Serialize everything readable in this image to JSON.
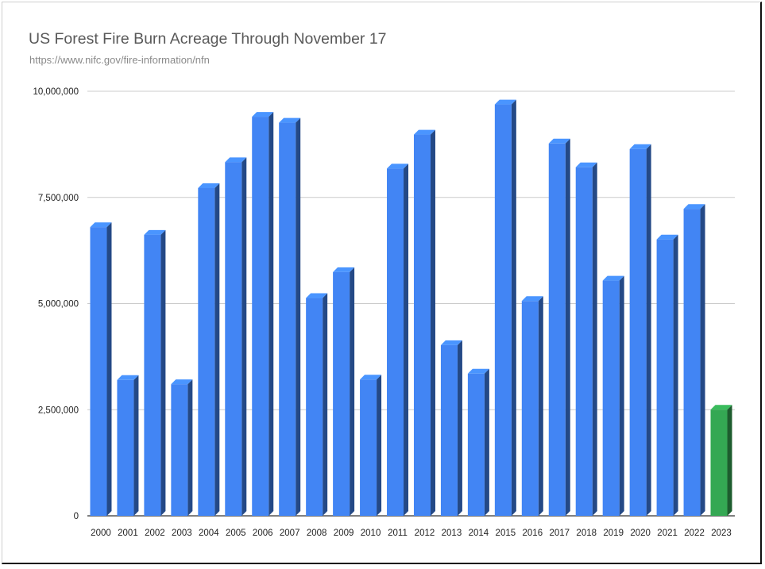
{
  "chart_data": {
    "type": "bar",
    "title": "US Forest Fire Burn Acreage Through November 17",
    "subtitle": "https://www.nifc.gov/fire-information/nfn",
    "xlabel": "",
    "ylabel": "",
    "ylim": [
      0,
      10000000
    ],
    "y_ticks": [
      0,
      2500000,
      5000000,
      7500000,
      10000000
    ],
    "y_tick_labels": [
      "0",
      "2,500,000",
      "5,000,000",
      "7,500,000",
      "10,000,000"
    ],
    "grid": true,
    "legend": "none",
    "categories": [
      "2000",
      "2001",
      "2002",
      "2003",
      "2004",
      "2005",
      "2006",
      "2007",
      "2008",
      "2009",
      "2010",
      "2011",
      "2012",
      "2013",
      "2014",
      "2015",
      "2016",
      "2017",
      "2018",
      "2019",
      "2020",
      "2021",
      "2022",
      "2023"
    ],
    "values": [
      6800000,
      3200000,
      6620000,
      3100000,
      7720000,
      8330000,
      9400000,
      9260000,
      5130000,
      5740000,
      3210000,
      8180000,
      8980000,
      4020000,
      3350000,
      9690000,
      5060000,
      8770000,
      8210000,
      5540000,
      8640000,
      6510000,
      7230000,
      2500000
    ],
    "colors": {
      "default": "#4285f4",
      "highlight": "#34a853",
      "highlight_category": "2023"
    }
  }
}
